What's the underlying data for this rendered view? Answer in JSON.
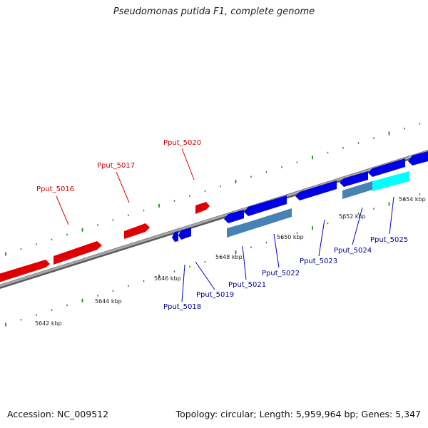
{
  "title": "Pseudomonas putida F1, complete genome",
  "footer": {
    "accession": "Accession: NC_009512",
    "topology": "Topology: circular; Length: 5,959,964 bp; Genes: 5,347"
  },
  "colors": {
    "forward_gene": "#ff0000",
    "reverse_gene": "#0000e6",
    "reverse_gene_steel": "#4682b4",
    "reverse_gene_cyan": "#00ffff",
    "tick": "#1e8a1e",
    "backbone": "#8a8a8a",
    "label_forward": "#cc0000",
    "label_reverse": "#00008b"
  },
  "gene_labels": {
    "forward": [
      "Pput_5016",
      "Pput_5017",
      "Pput_5020"
    ],
    "reverse": [
      "Pput_5018",
      "Pput_5019",
      "Pput_5021",
      "Pput_5022",
      "Pput_5023",
      "Pput_5024",
      "Pput_5025"
    ]
  },
  "kbp_labels": [
    "5642 kbp",
    "5644 kbp",
    "5646 kbp",
    "5648 kbp",
    "5650 kbp",
    "5652 kbp",
    "5654 kbp"
  ]
}
